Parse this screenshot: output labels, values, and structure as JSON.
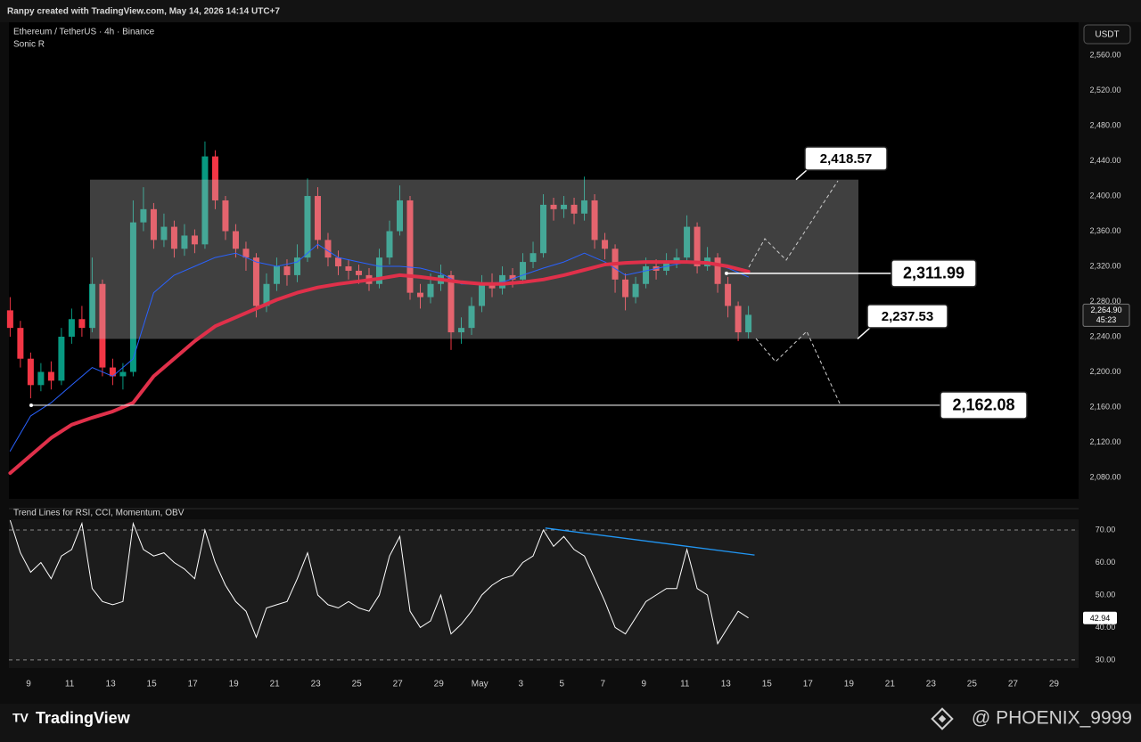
{
  "header": "Ranpy created with TradingView.com, May 14, 2026 14:14 UTC+7",
  "footer": {
    "brand": "TradingView",
    "watermark": "@ PHOENIX_9999"
  },
  "chart_data": [
    {
      "type": "candlestick",
      "title": "Ethereum / TetherUS · 4h · Binance",
      "subtitle": "Sonic R",
      "currency": "USDT",
      "up_color": "#089981",
      "down_color": "#f23645",
      "xlim": [
        8.04,
        60.2
      ],
      "ylim": [
        2055.7,
        2597.5
      ],
      "yticks": [
        {
          "value": 2080,
          "label": "2,080.00"
        },
        {
          "value": 2120,
          "label": "2,120.00"
        },
        {
          "value": 2160,
          "label": "2,160.00"
        },
        {
          "value": 2200,
          "label": "2,200.00"
        },
        {
          "value": 2240,
          "label": "2,240.00"
        },
        {
          "value": 2280,
          "label": "2,280.00"
        },
        {
          "value": 2320,
          "label": "2,320.00"
        },
        {
          "value": 2360,
          "label": "2,360.00"
        },
        {
          "value": 2400,
          "label": "2,400.00"
        },
        {
          "value": 2440,
          "label": "2,440.00"
        },
        {
          "value": 2480,
          "label": "2,480.00"
        },
        {
          "value": 2520,
          "label": "2,520.00"
        },
        {
          "value": 2560,
          "label": "2,560.00"
        }
      ],
      "x": [
        8.1,
        8.6,
        9.1,
        9.6,
        10.1,
        10.6,
        11.1,
        11.6,
        12.1,
        12.6,
        13.1,
        13.6,
        14.1,
        14.6,
        15.1,
        15.6,
        16.1,
        16.6,
        17.1,
        17.6,
        18.1,
        18.6,
        19.1,
        19.6,
        20.1,
        20.6,
        21.1,
        21.6,
        22.1,
        22.6,
        23.1,
        23.6,
        24.1,
        24.6,
        25.1,
        25.6,
        26.1,
        26.6,
        27.1,
        27.6,
        28.1,
        28.6,
        29.1,
        29.6,
        30.1,
        30.6,
        31.1,
        31.6,
        32.1,
        32.6,
        33.1,
        33.6,
        34.1,
        34.6,
        35.1,
        35.6,
        36.1,
        36.6,
        37.1,
        37.6,
        38.1,
        38.6,
        39.1,
        39.6,
        40.1,
        40.6,
        41.1,
        41.6,
        42.1,
        42.6,
        43.1,
        43.6,
        44.1
      ],
      "open": [
        2270,
        2250,
        2215,
        2185,
        2200,
        2190,
        2240,
        2260,
        2250,
        2300,
        2205,
        2195,
        2200,
        2370,
        2385,
        2350,
        2365,
        2340,
        2355,
        2345,
        2445,
        2395,
        2360,
        2340,
        2330,
        2275,
        2300,
        2320,
        2310,
        2330,
        2400,
        2350,
        2330,
        2320,
        2315,
        2310,
        2300,
        2330,
        2360,
        2395,
        2290,
        2285,
        2300,
        2310,
        2245,
        2250,
        2275,
        2300,
        2295,
        2310,
        2305,
        2325,
        2335,
        2390,
        2385,
        2390,
        2380,
        2395,
        2350,
        2340,
        2305,
        2285,
        2300,
        2320,
        2315,
        2325,
        2330,
        2365,
        2320,
        2330,
        2300,
        2275,
        2245
      ],
      "high": [
        2285,
        2258,
        2222,
        2210,
        2212,
        2250,
        2272,
        2275,
        2330,
        2305,
        2215,
        2210,
        2395,
        2410,
        2392,
        2380,
        2372,
        2368,
        2362,
        2462,
        2452,
        2400,
        2368,
        2348,
        2335,
        2312,
        2330,
        2328,
        2345,
        2420,
        2410,
        2358,
        2338,
        2328,
        2322,
        2318,
        2340,
        2372,
        2412,
        2400,
        2300,
        2312,
        2322,
        2315,
        2262,
        2285,
        2310,
        2312,
        2320,
        2318,
        2335,
        2348,
        2402,
        2398,
        2400,
        2398,
        2422,
        2402,
        2358,
        2345,
        2312,
        2308,
        2330,
        2328,
        2335,
        2340,
        2378,
        2370,
        2342,
        2335,
        2308,
        2280,
        2275
      ],
      "low": [
        2240,
        2205,
        2170,
        2178,
        2180,
        2185,
        2232,
        2240,
        2245,
        2195,
        2185,
        2180,
        2195,
        2360,
        2340,
        2342,
        2330,
        2332,
        2335,
        2340,
        2385,
        2350,
        2330,
        2315,
        2262,
        2268,
        2292,
        2298,
        2302,
        2325,
        2340,
        2320,
        2310,
        2305,
        2300,
        2292,
        2295,
        2322,
        2355,
        2282,
        2272,
        2278,
        2292,
        2225,
        2232,
        2242,
        2268,
        2285,
        2288,
        2296,
        2300,
        2318,
        2330,
        2372,
        2375,
        2368,
        2372,
        2340,
        2328,
        2290,
        2270,
        2278,
        2295,
        2305,
        2310,
        2318,
        2325,
        2312,
        2315,
        2290,
        2262,
        2235,
        2238
      ],
      "close": [
        2250,
        2215,
        2185,
        2200,
        2190,
        2240,
        2260,
        2250,
        2300,
        2205,
        2195,
        2200,
        2370,
        2385,
        2350,
        2365,
        2340,
        2355,
        2345,
        2445,
        2395,
        2360,
        2340,
        2330,
        2275,
        2300,
        2320,
        2310,
        2330,
        2400,
        2350,
        2330,
        2320,
        2315,
        2310,
        2300,
        2330,
        2360,
        2395,
        2290,
        2285,
        2300,
        2310,
        2245,
        2250,
        2275,
        2300,
        2295,
        2310,
        2305,
        2325,
        2335,
        2390,
        2385,
        2390,
        2380,
        2395,
        2350,
        2340,
        2305,
        2285,
        2300,
        2320,
        2315,
        2325,
        2330,
        2365,
        2320,
        2330,
        2300,
        2275,
        2245,
        2264.9
      ],
      "last_price": {
        "value": 2264.9,
        "label": "2,264.90"
      },
      "countdown": "45:23",
      "overlays": [
        {
          "color": "#2962ff",
          "width": 1,
          "x": [
            8.1,
            9.1,
            10.1,
            11.1,
            12.1,
            13.1,
            14.1,
            15.1,
            16.1,
            17.1,
            18.1,
            19.1,
            20.1,
            21.1,
            22.1,
            23.1,
            24.1,
            25.1,
            26.1,
            27.1,
            28.1,
            29.1,
            30.1,
            31.1,
            32.1,
            33.1,
            34.1,
            35.1,
            36.1,
            37.1,
            38.1,
            39.1,
            40.1,
            41.1,
            42.1,
            43.1,
            44.1
          ],
          "values": [
            2110,
            2150,
            2165,
            2185,
            2205,
            2195,
            2215,
            2290,
            2310,
            2320,
            2330,
            2335,
            2325,
            2320,
            2325,
            2345,
            2330,
            2325,
            2320,
            2320,
            2318,
            2312,
            2300,
            2300,
            2302,
            2310,
            2318,
            2325,
            2335,
            2325,
            2310,
            2315,
            2320,
            2325,
            2325,
            2318,
            2308
          ]
        },
        {
          "color": "#e0304a",
          "width": 4,
          "x": [
            8.1,
            9.1,
            10.1,
            11.1,
            12.1,
            13.1,
            14.1,
            15.1,
            16.1,
            17.1,
            18.1,
            19.1,
            20.1,
            21.1,
            22.1,
            23.1,
            24.1,
            25.1,
            26.1,
            27.1,
            28.1,
            29.1,
            30.1,
            31.1,
            32.1,
            33.1,
            34.1,
            35.1,
            36.1,
            37.1,
            38.1,
            39.1,
            40.1,
            41.1,
            42.1,
            43.1,
            44.1
          ],
          "values": [
            2085,
            2105,
            2125,
            2140,
            2148,
            2155,
            2165,
            2195,
            2215,
            2235,
            2252,
            2262,
            2272,
            2282,
            2290,
            2296,
            2300,
            2303,
            2306,
            2310,
            2308,
            2305,
            2302,
            2300,
            2300,
            2302,
            2305,
            2310,
            2316,
            2322,
            2324,
            2325,
            2325,
            2325,
            2324,
            2320,
            2314
          ]
        }
      ],
      "levels": [
        {
          "value": 2418.57,
          "label": "2,418.57"
        },
        {
          "value": 2311.99,
          "label": "2,311.99"
        },
        {
          "value": 2237.53,
          "label": "2,237.53"
        },
        {
          "value": 2162.08,
          "label": "2,162.08"
        }
      ]
    },
    {
      "type": "line",
      "title": "Trend Lines for RSI, CCI, Momentum, OBV",
      "color": "#ffffff",
      "xlim": [
        8.04,
        60.2
      ],
      "ylim": [
        27.5,
        73.3
      ],
      "yticks": [
        {
          "value": 30,
          "label": "30.00"
        },
        {
          "value": 40,
          "label": "40.00"
        },
        {
          "value": 50,
          "label": "50.00"
        },
        {
          "value": 60,
          "label": "60.00"
        },
        {
          "value": 70,
          "label": "70.00"
        }
      ],
      "xticks": [
        {
          "value": 9,
          "label": "9"
        },
        {
          "value": 11,
          "label": "11"
        },
        {
          "value": 13,
          "label": "13"
        },
        {
          "value": 15,
          "label": "15"
        },
        {
          "value": 17,
          "label": "17"
        },
        {
          "value": 19,
          "label": "19"
        },
        {
          "value": 21,
          "label": "21"
        },
        {
          "value": 23,
          "label": "23"
        },
        {
          "value": 25,
          "label": "25"
        },
        {
          "value": 27,
          "label": "27"
        },
        {
          "value": 29,
          "label": "29"
        },
        {
          "value": 31,
          "label": "May"
        },
        {
          "value": 33,
          "label": "3"
        },
        {
          "value": 35,
          "label": "5"
        },
        {
          "value": 37,
          "label": "7"
        },
        {
          "value": 39,
          "label": "9"
        },
        {
          "value": 41,
          "label": "11"
        },
        {
          "value": 43,
          "label": "13"
        },
        {
          "value": 45,
          "label": "15"
        },
        {
          "value": 47,
          "label": "17"
        },
        {
          "value": 49,
          "label": "19"
        },
        {
          "value": 51,
          "label": "21"
        },
        {
          "value": 53,
          "label": "23"
        },
        {
          "value": 55,
          "label": "25"
        },
        {
          "value": 57,
          "label": "27"
        },
        {
          "value": 59,
          "label": "29"
        }
      ],
      "x": [
        8.1,
        8.6,
        9.1,
        9.6,
        10.1,
        10.6,
        11.1,
        11.6,
        12.1,
        12.6,
        13.1,
        13.6,
        14.1,
        14.6,
        15.1,
        15.6,
        16.1,
        16.6,
        17.1,
        17.6,
        18.1,
        18.6,
        19.1,
        19.6,
        20.1,
        20.6,
        21.1,
        21.6,
        22.1,
        22.6,
        23.1,
        23.6,
        24.1,
        24.6,
        25.1,
        25.6,
        26.1,
        26.6,
        27.1,
        27.6,
        28.1,
        28.6,
        29.1,
        29.6,
        30.1,
        30.6,
        31.1,
        31.6,
        32.1,
        32.6,
        33.1,
        33.6,
        34.1,
        34.6,
        35.1,
        35.6,
        36.1,
        36.6,
        37.1,
        37.6,
        38.1,
        38.6,
        39.1,
        39.6,
        40.1,
        40.6,
        41.1,
        41.6,
        42.1,
        42.6,
        43.1,
        43.6,
        44.1
      ],
      "values": [
        73,
        63,
        57,
        60,
        55,
        62,
        64,
        72,
        52,
        48,
        47,
        48,
        72,
        64,
        62,
        63,
        60,
        58,
        55,
        70,
        60,
        53,
        48,
        45,
        37,
        46,
        47,
        48,
        55,
        63,
        50,
        47,
        46,
        48,
        46,
        45,
        50,
        62,
        68,
        45,
        40,
        42,
        50,
        38,
        41,
        45,
        50,
        53,
        55,
        56,
        60,
        62,
        70,
        65,
        68,
        64,
        62,
        55,
        48,
        40,
        38,
        43,
        48,
        50,
        52,
        52,
        64,
        52,
        50,
        35,
        40,
        45,
        42.94
      ],
      "last_value": 42.94,
      "trendline": {
        "color": "#2196f3",
        "x": [
          34.2,
          44.4
        ],
        "values": [
          70.6,
          62.3
        ]
      }
    }
  ]
}
